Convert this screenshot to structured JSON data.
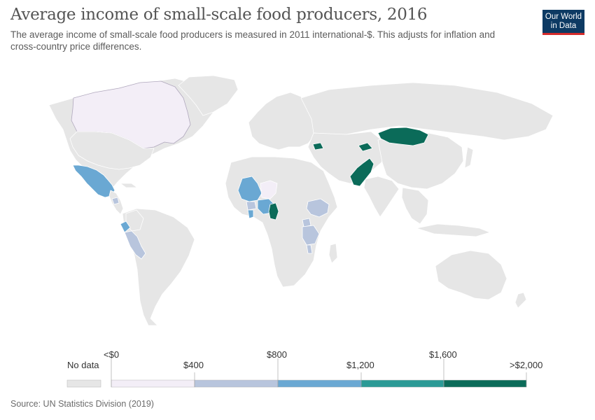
{
  "title": "Average income of small-scale food producers, 2016",
  "subtitle": "The average income of small-scale food producers is measured in 2011 international-$. This adjusts for inflation and cross-country price differences.",
  "logo": {
    "line1": "Our World",
    "line2": "in Data"
  },
  "colors": {
    "no_data": "#e6e6e6",
    "bin_0_400": "#f3eef7",
    "bin_400_800": "#b8c5dd",
    "bin_800_1200": "#6aa8d3",
    "bin_1200_1600": "#2b9a96",
    "bin_1600_2000": "#0b6b59"
  },
  "legend": {
    "no_data_label": "No data",
    "labels": [
      "<$0",
      "$400",
      "$800",
      "$1,200",
      "$1,600",
      ">$2,000"
    ]
  },
  "source": "Source: UN Statistics Division (2019)"
}
